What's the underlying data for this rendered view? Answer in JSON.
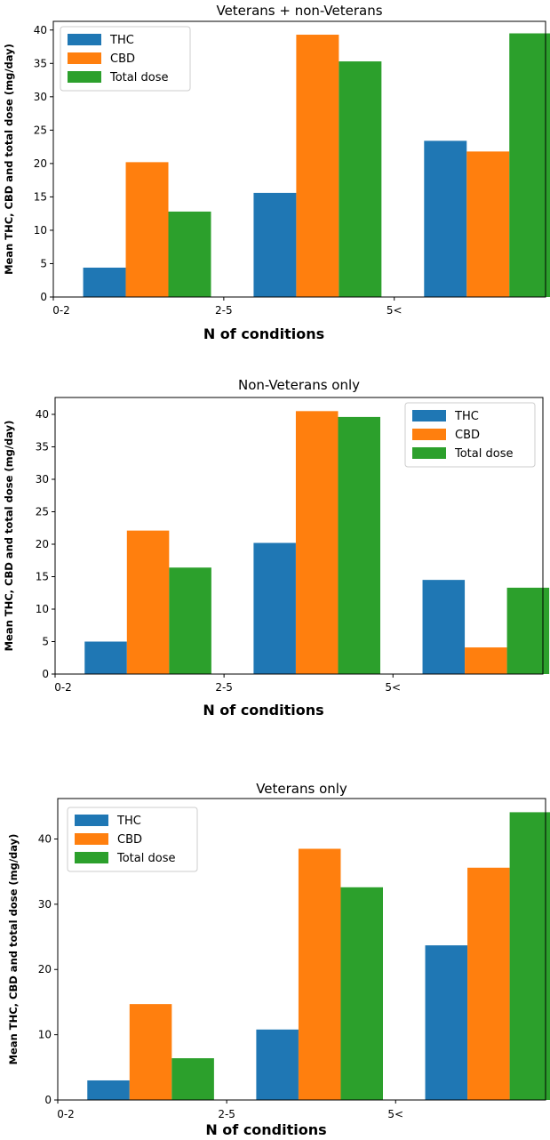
{
  "colors": {
    "THC": "#1f77b4",
    "CBD": "#ff7f0e",
    "Total dose": "#2ca02c"
  },
  "chart_data": [
    {
      "type": "bar",
      "title": "Veterans + non-Veterans",
      "xlabel": "N of conditions",
      "ylabel": "Mean THC, CBD and total dose (mg/day)",
      "categories": [
        "0-2",
        "2-5",
        "5<"
      ],
      "series": [
        {
          "name": "THC",
          "values": [
            4.4,
            15.6,
            23.4
          ]
        },
        {
          "name": "CBD",
          "values": [
            20.2,
            39.3,
            21.8
          ]
        },
        {
          "name": "Total dose",
          "values": [
            12.8,
            35.3,
            39.5
          ]
        }
      ],
      "yticks": [
        0,
        5,
        10,
        15,
        20,
        25,
        30,
        35,
        40
      ],
      "ylim": [
        0,
        41.3
      ],
      "legend": "top-left"
    },
    {
      "type": "bar",
      "title": "Non-Veterans only",
      "xlabel": "N of conditions",
      "ylabel": "Mean THC, CBD and total dose (mg/day)",
      "categories": [
        "0-2",
        "2-5",
        "5<"
      ],
      "series": [
        {
          "name": "THC",
          "values": [
            5.0,
            20.2,
            14.5
          ]
        },
        {
          "name": "CBD",
          "values": [
            22.1,
            40.5,
            4.1
          ]
        },
        {
          "name": "Total dose",
          "values": [
            16.4,
            39.6,
            13.3
          ]
        }
      ],
      "yticks": [
        0,
        5,
        10,
        15,
        20,
        25,
        30,
        35,
        40
      ],
      "ylim": [
        0,
        42.6
      ],
      "legend": "top-right"
    },
    {
      "type": "bar",
      "title": "Veterans only",
      "xlabel": "N of conditions",
      "ylabel": "Mean THC, CBD and total dose (mg/day)",
      "categories": [
        "0-2",
        "2-5",
        "5<"
      ],
      "series": [
        {
          "name": "THC",
          "values": [
            3.0,
            10.8,
            23.7
          ]
        },
        {
          "name": "CBD",
          "values": [
            14.7,
            38.5,
            35.6
          ]
        },
        {
          "name": "Total dose",
          "values": [
            6.4,
            32.6,
            44.1
          ]
        }
      ],
      "yticks": [
        0,
        10,
        20,
        30,
        40
      ],
      "ylim": [
        0,
        46.2
      ],
      "legend": "top-left"
    }
  ]
}
